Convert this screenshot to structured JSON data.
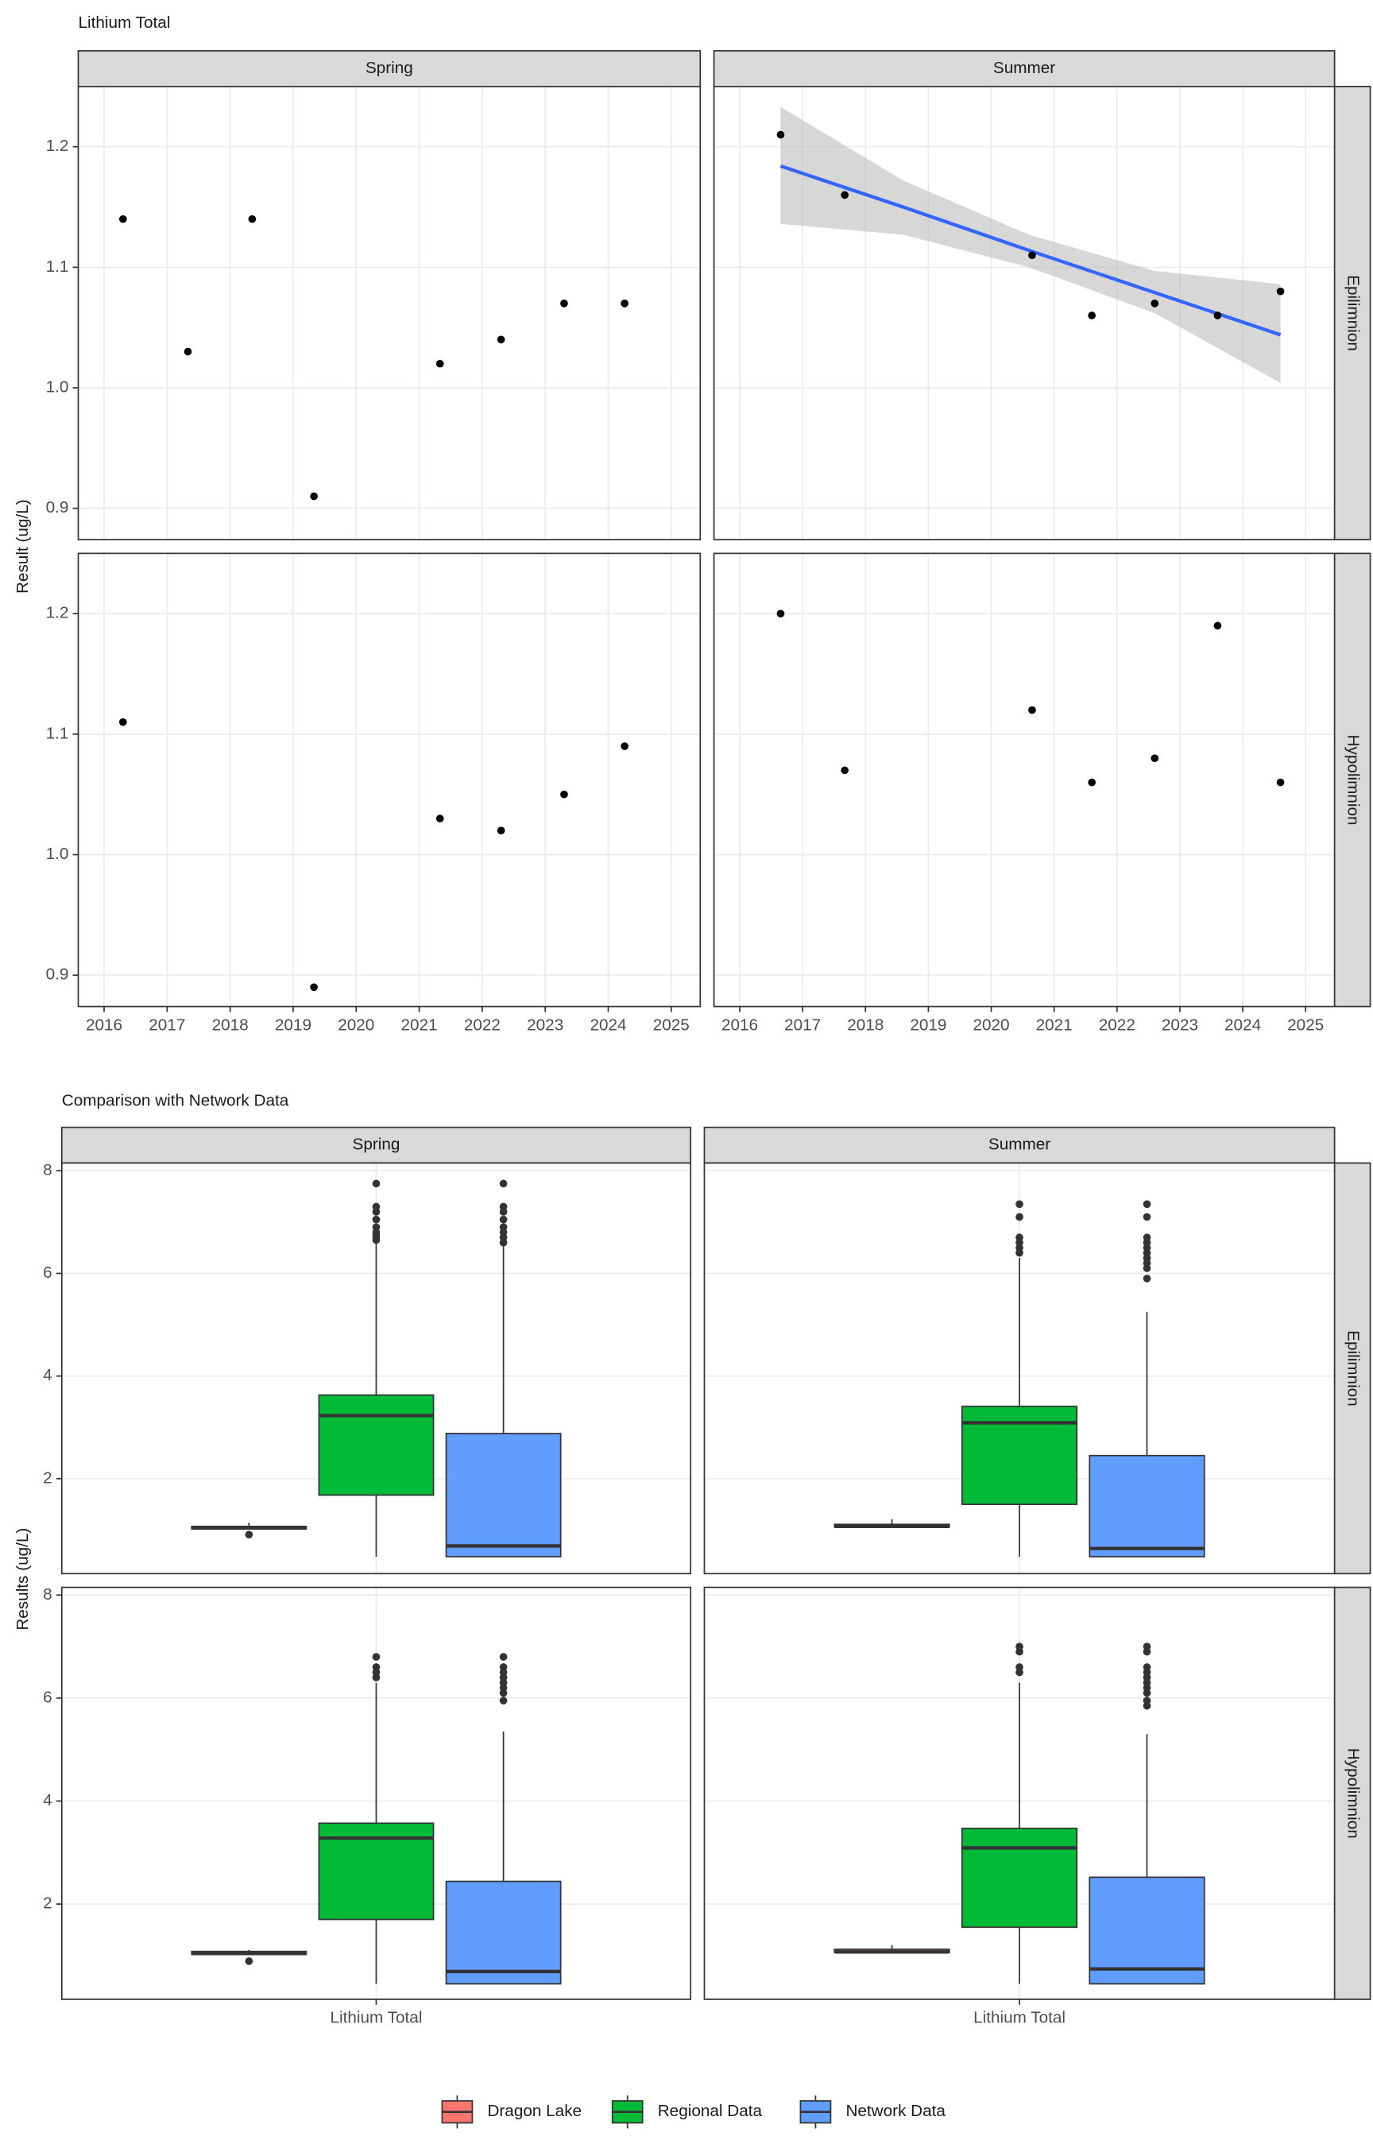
{
  "chart_data": [
    {
      "type": "scatter",
      "title": "Lithium Total",
      "ylabel": "Result (ug/L)",
      "facet_cols": [
        "Spring",
        "Summer"
      ],
      "facet_rows": [
        "Epilimnion",
        "Hypolimnion"
      ],
      "xlim": [
        2015.59,
        2025.46
      ],
      "xticks": [
        2016,
        2017,
        2018,
        2019,
        2020,
        2021,
        2022,
        2023,
        2024,
        2025
      ],
      "ylim": [
        0.874,
        1.25
      ],
      "yticks": [
        0.9,
        {
          "value": 1,
          "label": "1.0"
        },
        1.1,
        1.2
      ],
      "grid": true,
      "color": "#000000",
      "panels": [
        [
          {
            "x": [
              2016.3,
              2017.33,
              2018.35,
              2019.33,
              2021.33,
              2022.3,
              2023.3,
              2024.26
            ],
            "y": [
              1.14,
              1.03,
              1.14,
              0.91,
              1.02,
              1.04,
              1.07,
              1.07
            ]
          },
          {
            "x": [
              2016.65,
              2017.67,
              2020.65,
              2021.6,
              2022.6,
              2023.6,
              2024.6
            ],
            "y": [
              1.21,
              1.16,
              1.11,
              1.06,
              1.07,
              1.06,
              1.08
            ],
            "trend": {
              "color": "#3366ff",
              "band_color": "#bdbdbd",
              "x": [
                2016.65,
                2018.6,
                2020.6,
                2022.6,
                2024.6
              ],
              "y": [
                1.184,
                1.15,
                1.114,
                1.079,
                1.044
              ],
              "upper": [
                1.233,
                1.172,
                1.127,
                1.097,
                1.086
              ],
              "lower": [
                1.136,
                1.127,
                1.1,
                1.062,
                1.004
              ]
            }
          }
        ],
        [
          {
            "x": [
              2016.3,
              2019.33,
              2021.33,
              2022.3,
              2023.3,
              2024.26
            ],
            "y": [
              1.11,
              0.89,
              1.03,
              1.02,
              1.05,
              1.09
            ]
          },
          {
            "x": [
              2016.65,
              2017.67,
              2020.65,
              2021.6,
              2022.6,
              2023.6,
              2024.6
            ],
            "y": [
              1.2,
              1.07,
              1.12,
              1.06,
              1.08,
              1.19,
              1.06
            ]
          }
        ]
      ]
    },
    {
      "type": "box",
      "title": "Comparison with Network Data",
      "ylabel": "Results (ug/L)",
      "facet_cols": [
        "Spring",
        "Summer"
      ],
      "facet_rows": [
        "Epilimnion",
        "Hypolimnion"
      ],
      "categories": [
        "Lithium Total"
      ],
      "ylim": [
        0.15,
        8.15
      ],
      "yticks": [
        2,
        4,
        6,
        8
      ],
      "grid": true,
      "outline_color": "#333333",
      "series": [
        {
          "name": "Dragon Lake",
          "color": "#F8766D"
        },
        {
          "name": "Regional Data",
          "color": "#00BA38"
        },
        {
          "name": "Network Data",
          "color": "#619CFF"
        }
      ],
      "panels": [
        [
          [
            {
              "low": 1.02,
              "q1": 1.02,
              "median": 1.04,
              "q3": 1.07,
              "high": 1.14,
              "outliers": [
                0.91
              ]
            },
            {
              "low": 0.48,
              "q1": 1.68,
              "median": 3.23,
              "q3": 3.63,
              "high": 6.6,
              "outliers": [
                6.65,
                6.7,
                6.75,
                6.8,
                6.9,
                7.05,
                7.2,
                7.3,
                7.75
              ]
            },
            {
              "low": 0.48,
              "q1": 0.48,
              "median": 0.69,
              "q3": 2.88,
              "high": 6.55,
              "outliers": [
                6.6,
                6.7,
                6.8,
                6.9,
                7.05,
                7.2,
                7.3,
                7.75
              ]
            }
          ],
          [
            {
              "low": 1.06,
              "q1": 1.06,
              "median": 1.07,
              "q3": 1.11,
              "high": 1.21,
              "outliers": []
            },
            {
              "low": 0.48,
              "q1": 1.5,
              "median": 3.09,
              "q3": 3.41,
              "high": 6.3,
              "outliers": [
                6.4,
                6.5,
                6.6,
                6.7,
                7.1,
                7.35
              ]
            },
            {
              "low": 0.48,
              "q1": 0.48,
              "median": 0.64,
              "q3": 2.45,
              "high": 5.25,
              "outliers": [
                5.9,
                6.1,
                6.2,
                6.3,
                6.4,
                6.5,
                6.6,
                6.7,
                7.1,
                7.35
              ]
            }
          ]
        ],
        [
          [
            {
              "low": 1.02,
              "q1": 1.02,
              "median": 1.04,
              "q3": 1.08,
              "high": 1.11,
              "outliers": [
                0.89
              ]
            },
            {
              "low": 0.45,
              "q1": 1.7,
              "median": 3.28,
              "q3": 3.57,
              "high": 6.3,
              "outliers": [
                6.4,
                6.5,
                6.6,
                6.8
              ]
            },
            {
              "low": 0.45,
              "q1": 0.45,
              "median": 0.69,
              "q3": 2.44,
              "high": 5.35,
              "outliers": [
                5.95,
                6.1,
                6.2,
                6.3,
                6.4,
                6.5,
                6.6,
                6.8
              ]
            }
          ],
          [
            {
              "low": 1.06,
              "q1": 1.06,
              "median": 1.07,
              "q3": 1.12,
              "high": 1.2,
              "outliers": []
            },
            {
              "low": 0.45,
              "q1": 1.55,
              "median": 3.09,
              "q3": 3.47,
              "high": 6.3,
              "outliers": [
                6.5,
                6.6,
                6.9,
                7.0
              ]
            },
            {
              "low": 0.45,
              "q1": 0.45,
              "median": 0.74,
              "q3": 2.52,
              "high": 5.3,
              "outliers": [
                5.85,
                5.95,
                6.1,
                6.2,
                6.3,
                6.4,
                6.5,
                6.6,
                6.9,
                7.0
              ]
            }
          ]
        ]
      ]
    }
  ]
}
